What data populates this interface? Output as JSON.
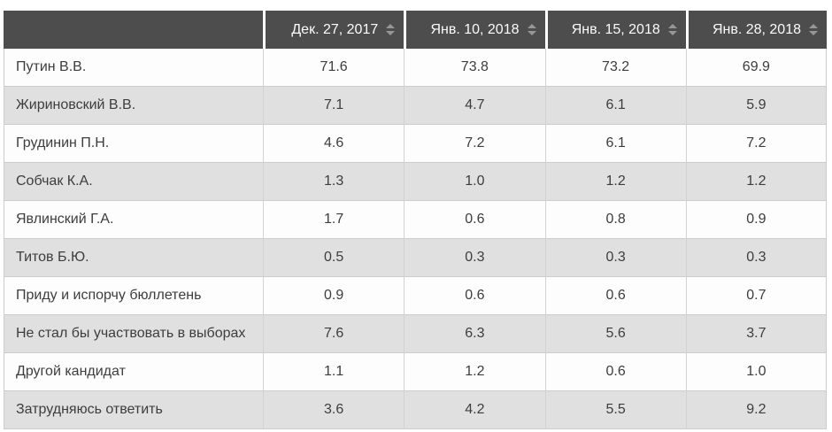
{
  "colors": {
    "header_bg": "#4d4d4d",
    "header_text": "#fbfbfb",
    "sort_icon": "#979797",
    "row_bg": "#fdfdfd",
    "row_alt_bg": "#e0e0e0",
    "body_text": "#3d3d3d",
    "border": "#cccccc"
  },
  "table": {
    "columns": [
      {
        "label": "Дек. 27, 2017"
      },
      {
        "label": "Янв. 10, 2018"
      },
      {
        "label": "Янв. 15, 2018"
      },
      {
        "label": "Янв. 28, 2018"
      }
    ],
    "rows": [
      {
        "label": "Путин В.В.",
        "values": [
          "71.6",
          "73.8",
          "73.2",
          "69.9"
        ]
      },
      {
        "label": "Жириновский В.В.",
        "values": [
          "7.1",
          "4.7",
          "6.1",
          "5.9"
        ]
      },
      {
        "label": "Грудинин П.Н.",
        "values": [
          "4.6",
          "7.2",
          "6.1",
          "7.2"
        ]
      },
      {
        "label": "Собчак К.А.",
        "values": [
          "1.3",
          "1.0",
          "1.2",
          "1.2"
        ]
      },
      {
        "label": "Явлинский Г.А.",
        "values": [
          "1.7",
          "0.6",
          "0.8",
          "0.9"
        ]
      },
      {
        "label": "Титов Б.Ю.",
        "values": [
          "0.5",
          "0.3",
          "0.3",
          "0.3"
        ]
      },
      {
        "label": "Приду и испорчу бюллетень",
        "values": [
          "0.9",
          "0.6",
          "0.6",
          "0.7"
        ]
      },
      {
        "label": "Не стал бы участвовать в выборах",
        "values": [
          "7.6",
          "6.3",
          "5.6",
          "3.7"
        ]
      },
      {
        "label": "Другой кандидат",
        "values": [
          "1.1",
          "1.2",
          "0.6",
          "1.0"
        ]
      },
      {
        "label": "Затрудняюсь ответить",
        "values": [
          "3.6",
          "4.2",
          "5.5",
          "9.2"
        ]
      }
    ]
  }
}
